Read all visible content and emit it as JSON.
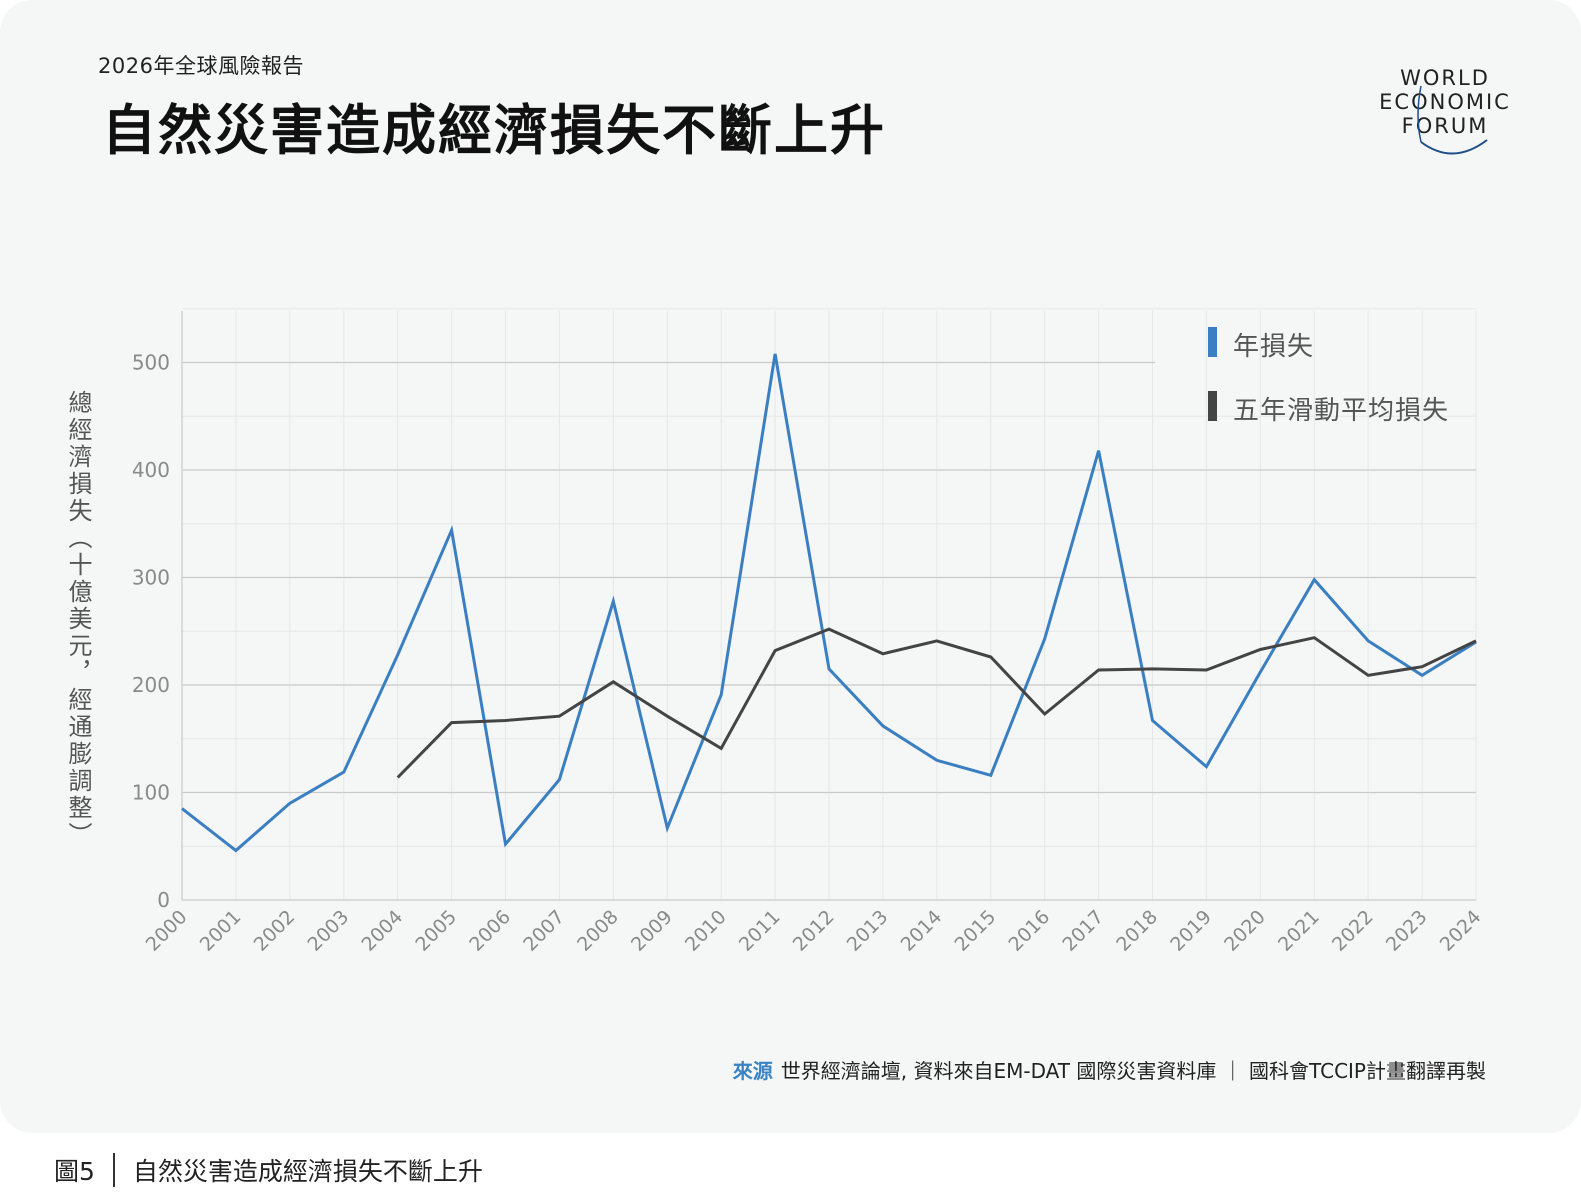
{
  "header": {
    "subtitle": "2026年全球風險報告",
    "title": "自然災害造成經濟損失不斷上升"
  },
  "logo": {
    "lines": [
      "WORLD",
      "ECONOMIC",
      "FORUM"
    ]
  },
  "chart_data": {
    "type": "line",
    "ylabel": "總經濟損失（十億美元，經通膨調整）",
    "xlabel": "",
    "ylim": [
      0,
      550
    ],
    "yticks": [
      0,
      100,
      200,
      300,
      400,
      500
    ],
    "x": [
      "2000",
      "2001",
      "2002",
      "2003",
      "2004",
      "2005",
      "2006",
      "2007",
      "2008",
      "2009",
      "2010",
      "2011",
      "2012",
      "2013",
      "2014",
      "2015",
      "2016",
      "2017",
      "2018",
      "2019",
      "2020",
      "2021",
      "2022",
      "2023",
      "2024"
    ],
    "series": [
      {
        "name": "年損失",
        "color": "#3a7fc1",
        "values": [
          85,
          46,
          90,
          119,
          228,
          344,
          52,
          112,
          278,
          67,
          191,
          508,
          215,
          162,
          130,
          116,
          243,
          418,
          167,
          124,
          212,
          298,
          241,
          209,
          240
        ]
      },
      {
        "name": "五年滑動平均損失",
        "color": "#444444",
        "values": [
          null,
          null,
          null,
          null,
          114,
          165,
          167,
          171,
          203,
          171,
          141,
          232,
          252,
          229,
          241,
          226,
          173,
          214,
          215,
          214,
          233,
          244,
          209,
          217,
          241
        ]
      }
    ],
    "grid": true,
    "legend_position": "top-right"
  },
  "source": {
    "label": "來源",
    "text": "世界經濟論壇, 資料來自EM-DAT 國際災害資料庫 ｜ 國科會TCCIP計畫翻譯再製"
  },
  "caption": {
    "figure_number": "圖5",
    "text": "自然災害造成經濟損失不斷上升"
  }
}
